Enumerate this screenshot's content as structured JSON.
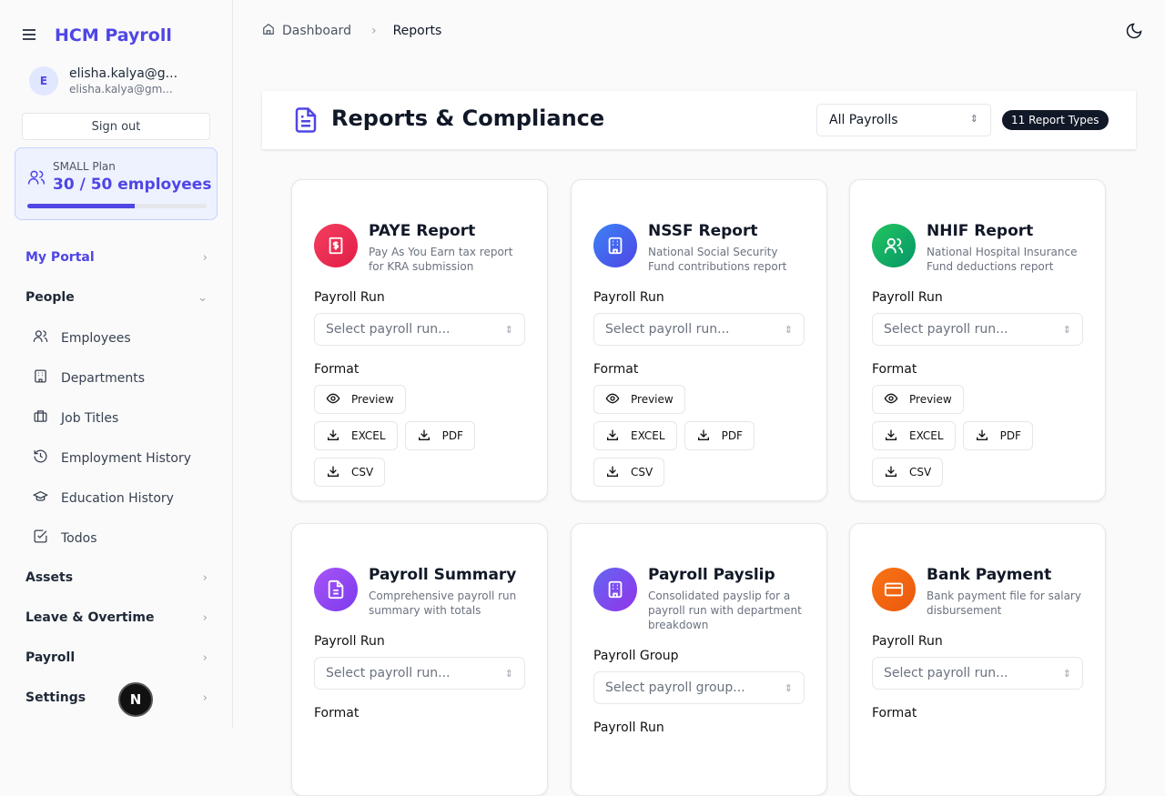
{
  "app": {
    "title": "HCM Payroll"
  },
  "user": {
    "initial": "E",
    "name": "elisha.kalya@g...",
    "email": "elisha.kalya@gm...",
    "sign_out": "Sign out"
  },
  "plan": {
    "label": "SMALL Plan",
    "usage": "30 / 50 employees",
    "fraction": 0.6
  },
  "nav": {
    "my_portal": "My Portal",
    "people": "People",
    "people_items": [
      "Employees",
      "Departments",
      "Job Titles",
      "Employment History",
      "Education History",
      "Todos"
    ],
    "assets": "Assets",
    "leave": "Leave & Overtime",
    "payroll": "Payroll",
    "settings": "Settings"
  },
  "breadcrumb": {
    "home": "Dashboard",
    "current": "Reports"
  },
  "header": {
    "title": "Reports & Compliance",
    "filter": "All Payrolls",
    "count_badge": "11 Report Types"
  },
  "colors": {
    "accent": "#4f46e5"
  },
  "cards": [
    {
      "title": "PAYE Report",
      "desc": "Pay As You Earn tax report for KRA submission",
      "icon": "receipt-dollar-icon",
      "gradient": [
        "#f43f5e",
        "#e11d48"
      ],
      "fields": [
        {
          "label": "Payroll Run",
          "placeholder": "Select payroll run..."
        }
      ],
      "format_label": "Format",
      "formats": [
        "Preview",
        "EXCEL",
        "PDF",
        "CSV"
      ]
    },
    {
      "title": "NSSF Report",
      "desc": "National Social Security Fund contributions report",
      "icon": "building-icon",
      "gradient": [
        "#3b82f6",
        "#4f46e5"
      ],
      "fields": [
        {
          "label": "Payroll Run",
          "placeholder": "Select payroll run..."
        }
      ],
      "format_label": "Format",
      "formats": [
        "Preview",
        "EXCEL",
        "PDF",
        "CSV"
      ]
    },
    {
      "title": "NHIF Report",
      "desc": "National Hospital Insurance Fund deductions report",
      "icon": "users-icon",
      "gradient": [
        "#22c55e",
        "#059669"
      ],
      "fields": [
        {
          "label": "Payroll Run",
          "placeholder": "Select payroll run..."
        }
      ],
      "format_label": "Format",
      "formats": [
        "Preview",
        "EXCEL",
        "PDF",
        "CSV"
      ]
    },
    {
      "title": "Payroll Summary",
      "desc": "Comprehensive payroll run summary with totals",
      "icon": "document-icon",
      "gradient": [
        "#a855f7",
        "#7c3aed"
      ],
      "fields": [
        {
          "label": "Payroll Run",
          "placeholder": "Select payroll run..."
        }
      ],
      "format_label": "Format",
      "formats": []
    },
    {
      "title": "Payroll Payslip",
      "desc": "Consolidated payslip for a payroll run with department breakdown",
      "icon": "building-icon",
      "gradient": [
        "#6366f1",
        "#9333ea"
      ],
      "fields": [
        {
          "label": "Payroll Group",
          "placeholder": "Select payroll group..."
        },
        {
          "label": "Payroll Run",
          "placeholder": ""
        }
      ],
      "format_label": "",
      "formats": []
    },
    {
      "title": "Bank Payment",
      "desc": "Bank payment file for salary disbursement",
      "icon": "credit-card-icon",
      "gradient": [
        "#f97316",
        "#ea580c"
      ],
      "fields": [
        {
          "label": "Payroll Run",
          "placeholder": "Select payroll run..."
        }
      ],
      "format_label": "Format",
      "formats": []
    }
  ]
}
